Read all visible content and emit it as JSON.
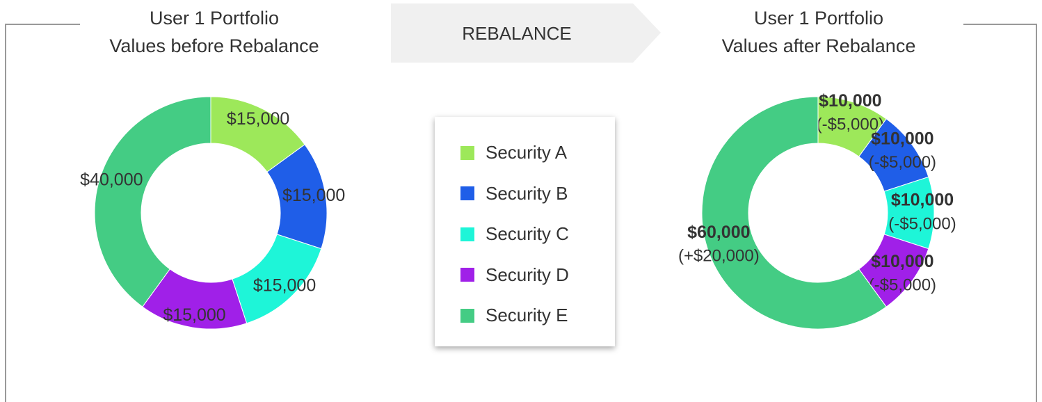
{
  "action": "REBALANCE",
  "chart_data": [
    {
      "type": "donut",
      "title": "User 1 Portfolio\nValues before Rebalance",
      "categories": [
        "Security A",
        "Security B",
        "Security C",
        "Security D",
        "Security E"
      ],
      "values": [
        15000,
        15000,
        15000,
        15000,
        40000
      ],
      "value_labels": [
        "$15,000",
        "$15,000",
        "$15,000",
        "$15,000",
        "$40,000"
      ],
      "colors": [
        "#9de85a",
        "#1f5ee8",
        "#1ef5d8",
        "#a020e8",
        "#44cc84"
      ]
    },
    {
      "type": "donut",
      "title": "User 1 Portfolio\nValues after Rebalance",
      "categories": [
        "Security A",
        "Security B",
        "Security C",
        "Security D",
        "Security E"
      ],
      "values": [
        10000,
        10000,
        10000,
        10000,
        60000
      ],
      "value_labels": [
        "$10,000",
        "$10,000",
        "$10,000",
        "$10,000",
        "$60,000"
      ],
      "change_labels": [
        "(-$5,000)",
        "(-$5,000)",
        "(-$5,000)",
        "(-$5,000)",
        "(+$20,000)"
      ],
      "colors": [
        "#9de85a",
        "#1f5ee8",
        "#1ef5d8",
        "#a020e8",
        "#44cc84"
      ]
    }
  ]
}
